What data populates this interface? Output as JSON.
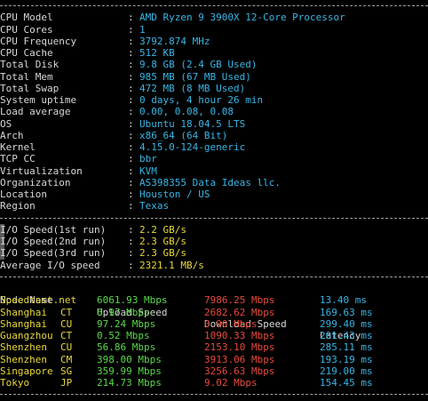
{
  "system_info": [
    {
      "label": "CPU Model",
      "value": "AMD Ryzen 9 3900X 12-Core Processor"
    },
    {
      "label": "CPU Cores",
      "value": "1"
    },
    {
      "label": "CPU Frequency",
      "value": "3792.874 MHz"
    },
    {
      "label": "CPU Cache",
      "value": "512 KB"
    },
    {
      "label": "Total Disk",
      "value": "9.8 GB (2.4 GB Used)"
    },
    {
      "label": "Total Mem",
      "value": "985 MB (67 MB Used)"
    },
    {
      "label": "Total Swap",
      "value": "472 MB (8 MB Used)"
    },
    {
      "label": "System uptime",
      "value": "0 days, 4 hour 26 min"
    },
    {
      "label": "Load average",
      "value": "0.00, 0.08, 0.08"
    },
    {
      "label": "OS",
      "value": "Ubuntu 18.04.5 LTS"
    },
    {
      "label": "Arch",
      "value": "x86_64 (64 Bit)"
    },
    {
      "label": "Kernel",
      "value": "4.15.0-124-generic"
    },
    {
      "label": "TCP CC",
      "value": "bbr"
    },
    {
      "label": "Virtualization",
      "value": "KVM"
    },
    {
      "label": "Organization",
      "value": "AS398355 Data Ideas llc."
    },
    {
      "label": "Location",
      "value": "Houston / US"
    },
    {
      "label": "Region",
      "value": "Texas"
    }
  ],
  "colon": ":",
  "io": [
    {
      "label": "I/O Speed(1st run)",
      "value": "2.2 GB/s"
    },
    {
      "label": "I/O Speed(2nd run)",
      "value": "2.3 GB/s"
    },
    {
      "label": "I/O Speed(3rd run)",
      "value": "2.3 GB/s"
    },
    {
      "label": "Average I/O speed",
      "value": "2321.1 MB/s"
    }
  ],
  "speed_table": {
    "headers": {
      "node": "Node Name",
      "upload": "Upload Speed",
      "download": "Download Speed",
      "latency": "Latency"
    },
    "rows": [
      {
        "node": "Speedtest.net",
        "isp": "",
        "upload": "6061.93 Mbps",
        "download": "7986.25 Mbps",
        "latency": "13.40 ms"
      },
      {
        "node": "Shanghai",
        "isp": "CT",
        "upload": "6.97 Mbps",
        "download": "2682.62 Mbps",
        "latency": "169.63 ms"
      },
      {
        "node": "Shanghai",
        "isp": "CU",
        "upload": "97.24 Mbps",
        "download": "0.90 Mbps",
        "latency": "299.40 ms"
      },
      {
        "node": "Guangzhou",
        "isp": "CT",
        "upload": "0.52 Mbps",
        "download": "1090.33 Mbps",
        "latency": "201.43 ms"
      },
      {
        "node": "Shenzhen",
        "isp": "CU",
        "upload": "56.86 Mbps",
        "download": "2153.10 Mbps",
        "latency": "285.11 ms"
      },
      {
        "node": "Shenzhen",
        "isp": "CM",
        "upload": "398.00 Mbps",
        "download": "3913.06 Mbps",
        "latency": "193.19 ms"
      },
      {
        "node": "Singapore",
        "isp": "SG",
        "upload": "359.99 Mbps",
        "download": "3256.63 Mbps",
        "latency": "219.00 ms"
      },
      {
        "node": "Tokyo",
        "isp": "JP",
        "upload": "214.73 Mbps",
        "download": "9.02 Mbps",
        "latency": "154.45 ms"
      }
    ]
  },
  "colors": {
    "background": "#000000",
    "label": "#d8d8d8",
    "value": "#38b6e6",
    "node": "#e8d838",
    "upload": "#5ad84a",
    "download": "#e84a3a",
    "latency": "#38b6e6"
  }
}
